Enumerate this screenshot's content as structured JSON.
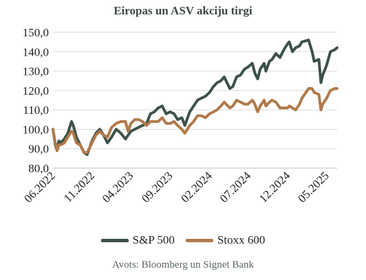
{
  "chart_data": {
    "type": "line",
    "title": "Eiropas un ASV akciju tirgi",
    "ylim": [
      80,
      150
    ],
    "yticks": [
      "80,0",
      "90,0",
      "100,0",
      "110,0",
      "120,0",
      "130,0",
      "140,0",
      "150,0"
    ],
    "ytick_values": [
      80,
      90,
      100,
      110,
      120,
      130,
      140,
      150
    ],
    "xticks": [
      "06.2022",
      "11.2022",
      "04.2023",
      "09.2023",
      "02.2024",
      "07.2024",
      "12.2024",
      "05.2025"
    ],
    "grid": "horizontal",
    "legend_position": "bottom",
    "source": "Avots: Bloomberg un Signet Bank",
    "series": [
      {
        "name": "S&P 500",
        "color": "#3d5249",
        "points": [
          [
            "2022-06-01",
            100
          ],
          [
            "2022-06-10",
            92
          ],
          [
            "2022-06-17",
            89
          ],
          [
            "2022-06-24",
            94
          ],
          [
            "2022-07-01",
            93
          ],
          [
            "2022-07-15",
            95
          ],
          [
            "2022-07-29",
            98
          ],
          [
            "2022-08-12",
            104
          ],
          [
            "2022-08-19",
            102
          ],
          [
            "2022-08-31",
            96
          ],
          [
            "2022-09-15",
            92
          ],
          [
            "2022-09-30",
            88
          ],
          [
            "2022-10-12",
            87
          ],
          [
            "2022-10-31",
            94
          ],
          [
            "2022-11-15",
            98
          ],
          [
            "2022-11-30",
            100
          ],
          [
            "2022-12-15",
            97
          ],
          [
            "2022-12-30",
            93
          ],
          [
            "2023-01-15",
            96
          ],
          [
            "2023-02-02",
            100
          ],
          [
            "2023-02-20",
            98
          ],
          [
            "2023-03-10",
            95
          ],
          [
            "2023-03-31",
            99
          ],
          [
            "2023-04-15",
            100
          ],
          [
            "2023-04-30",
            101
          ],
          [
            "2023-05-15",
            102
          ],
          [
            "2023-05-31",
            103
          ],
          [
            "2023-06-15",
            108
          ],
          [
            "2023-06-30",
            109
          ],
          [
            "2023-07-15",
            111
          ],
          [
            "2023-07-31",
            112
          ],
          [
            "2023-08-15",
            108
          ],
          [
            "2023-08-31",
            109
          ],
          [
            "2023-09-15",
            108
          ],
          [
            "2023-09-29",
            105
          ],
          [
            "2023-10-15",
            106
          ],
          [
            "2023-10-27",
            102
          ],
          [
            "2023-11-15",
            109
          ],
          [
            "2023-11-30",
            112
          ],
          [
            "2023-12-15",
            115
          ],
          [
            "2023-12-29",
            116
          ],
          [
            "2024-01-15",
            117
          ],
          [
            "2024-01-31",
            119
          ],
          [
            "2024-02-15",
            122
          ],
          [
            "2024-02-29",
            124
          ],
          [
            "2024-03-15",
            125
          ],
          [
            "2024-03-28",
            127
          ],
          [
            "2024-04-19",
            121
          ],
          [
            "2024-04-30",
            122
          ],
          [
            "2024-05-15",
            127
          ],
          [
            "2024-05-31",
            128
          ],
          [
            "2024-06-15",
            131
          ],
          [
            "2024-06-28",
            132
          ],
          [
            "2024-07-15",
            134
          ],
          [
            "2024-07-25",
            129
          ],
          [
            "2024-08-05",
            126
          ],
          [
            "2024-08-15",
            131
          ],
          [
            "2024-08-30",
            134
          ],
          [
            "2024-09-06",
            130
          ],
          [
            "2024-09-20",
            135
          ],
          [
            "2024-09-30",
            136
          ],
          [
            "2024-10-15",
            139
          ],
          [
            "2024-10-31",
            137
          ],
          [
            "2024-11-15",
            141
          ],
          [
            "2024-11-29",
            144
          ],
          [
            "2024-12-06",
            145
          ],
          [
            "2024-12-18",
            140
          ],
          [
            "2024-12-31",
            142
          ],
          [
            "2025-01-15",
            143
          ],
          [
            "2025-01-24",
            145
          ],
          [
            "2025-02-19",
            146
          ],
          [
            "2025-03-05",
            140
          ],
          [
            "2025-03-13",
            135
          ],
          [
            "2025-03-31",
            136
          ],
          [
            "2025-04-08",
            124
          ],
          [
            "2025-04-15",
            128
          ],
          [
            "2025-04-30",
            133
          ],
          [
            "2025-05-15",
            140
          ],
          [
            "2025-05-31",
            141
          ],
          [
            "2025-06-10",
            142
          ]
        ]
      },
      {
        "name": "Stoxx 600",
        "color": "#b07a4b",
        "points": [
          [
            "2022-06-01",
            100
          ],
          [
            "2022-06-10",
            93
          ],
          [
            "2022-06-17",
            89
          ],
          [
            "2022-06-24",
            92
          ],
          [
            "2022-07-01",
            92
          ],
          [
            "2022-07-15",
            93
          ],
          [
            "2022-07-29",
            96
          ],
          [
            "2022-08-12",
            99
          ],
          [
            "2022-08-19",
            98
          ],
          [
            "2022-08-31",
            93
          ],
          [
            "2022-09-15",
            92
          ],
          [
            "2022-09-30",
            88
          ],
          [
            "2022-10-12",
            88
          ],
          [
            "2022-10-31",
            93
          ],
          [
            "2022-11-15",
            97
          ],
          [
            "2022-11-30",
            99
          ],
          [
            "2022-12-15",
            97
          ],
          [
            "2022-12-30",
            96
          ],
          [
            "2023-01-15",
            101
          ],
          [
            "2023-02-02",
            103
          ],
          [
            "2023-02-20",
            104
          ],
          [
            "2023-03-10",
            104
          ],
          [
            "2023-03-20",
            99
          ],
          [
            "2023-03-31",
            103
          ],
          [
            "2023-04-15",
            105
          ],
          [
            "2023-04-30",
            105
          ],
          [
            "2023-05-15",
            104
          ],
          [
            "2023-05-31",
            102
          ],
          [
            "2023-06-15",
            104
          ],
          [
            "2023-06-30",
            104
          ],
          [
            "2023-07-15",
            104
          ],
          [
            "2023-07-31",
            106
          ],
          [
            "2023-08-15",
            103
          ],
          [
            "2023-08-31",
            103
          ],
          [
            "2023-09-15",
            104
          ],
          [
            "2023-09-29",
            102
          ],
          [
            "2023-10-15",
            100
          ],
          [
            "2023-10-27",
            98
          ],
          [
            "2023-11-15",
            102
          ],
          [
            "2023-11-30",
            104
          ],
          [
            "2023-12-15",
            107
          ],
          [
            "2023-12-29",
            107
          ],
          [
            "2024-01-15",
            106
          ],
          [
            "2024-01-31",
            108
          ],
          [
            "2024-02-15",
            109
          ],
          [
            "2024-02-29",
            110
          ],
          [
            "2024-03-15",
            112
          ],
          [
            "2024-03-28",
            114
          ],
          [
            "2024-04-19",
            111
          ],
          [
            "2024-04-30",
            112
          ],
          [
            "2024-05-15",
            115
          ],
          [
            "2024-05-31",
            114
          ],
          [
            "2024-06-15",
            113
          ],
          [
            "2024-06-28",
            113
          ],
          [
            "2024-07-15",
            115
          ],
          [
            "2024-07-25",
            113
          ],
          [
            "2024-08-05",
            109
          ],
          [
            "2024-08-15",
            112
          ],
          [
            "2024-08-30",
            115
          ],
          [
            "2024-09-06",
            112
          ],
          [
            "2024-09-20",
            114
          ],
          [
            "2024-09-30",
            115
          ],
          [
            "2024-10-15",
            114
          ],
          [
            "2024-10-31",
            111
          ],
          [
            "2024-11-15",
            111
          ],
          [
            "2024-11-29",
            111
          ],
          [
            "2024-12-06",
            112
          ],
          [
            "2024-12-18",
            111
          ],
          [
            "2024-12-31",
            110
          ],
          [
            "2025-01-15",
            113
          ],
          [
            "2025-01-24",
            116
          ],
          [
            "2025-02-19",
            121
          ],
          [
            "2025-03-05",
            121
          ],
          [
            "2025-03-13",
            119
          ],
          [
            "2025-03-31",
            118
          ],
          [
            "2025-04-08",
            110
          ],
          [
            "2025-04-15",
            113
          ],
          [
            "2025-04-30",
            116
          ],
          [
            "2025-05-15",
            120
          ],
          [
            "2025-05-31",
            121
          ],
          [
            "2025-06-10",
            121
          ]
        ]
      }
    ]
  }
}
